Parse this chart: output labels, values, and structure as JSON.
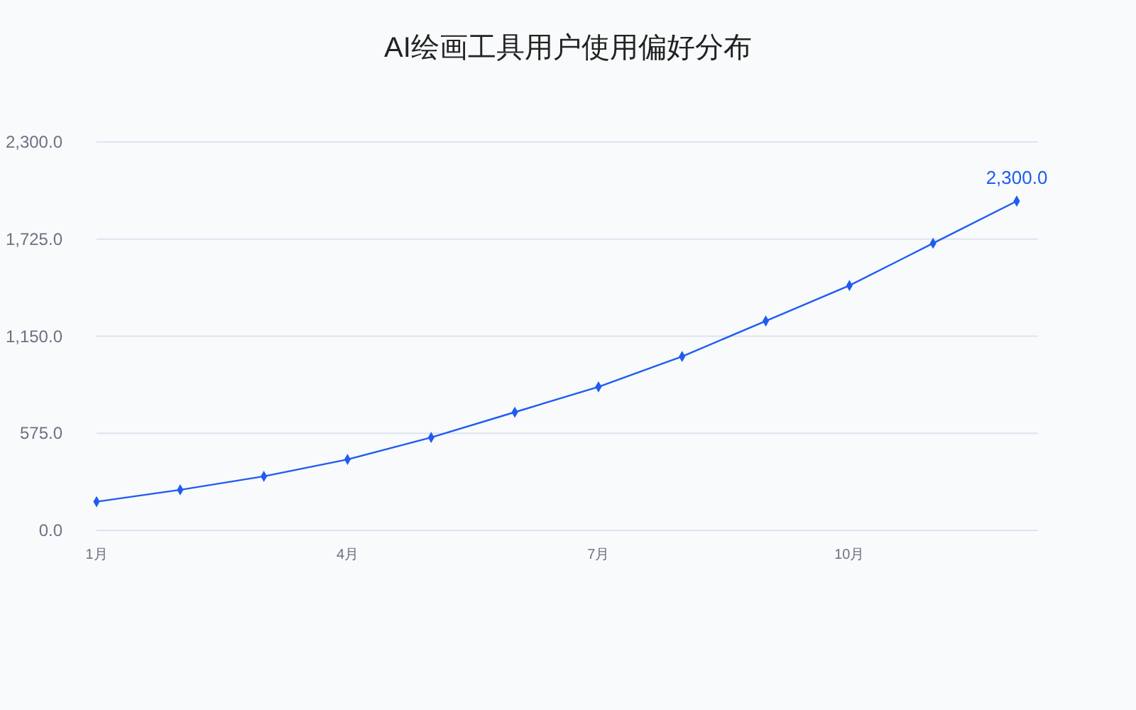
{
  "chart_data": {
    "type": "line",
    "title": "AI绘画工具用户使用偏好分布",
    "categories": [
      "1月",
      null,
      null,
      "4月",
      null,
      null,
      "7月",
      null,
      null,
      "10月",
      null,
      null
    ],
    "series": [
      {
        "color": "#1f5cf0",
        "values": [
          170,
          240,
          320,
          420,
          550,
          700,
          850,
          1030,
          1240,
          1450,
          1700,
          1950
        ]
      }
    ],
    "ylim": [
      0,
      2300
    ],
    "yticks": [
      {
        "value": 0,
        "label": "0.0"
      },
      {
        "value": 575,
        "label": "575.0"
      },
      {
        "value": 1150,
        "label": "1,150.0"
      },
      {
        "value": 1725,
        "label": "1,725.0"
      },
      {
        "value": 2300,
        "label": "2,300.0"
      }
    ],
    "grid": "y",
    "marker": "diamond",
    "line_style": "solid",
    "annotations": [
      "2,300.0"
    ]
  }
}
